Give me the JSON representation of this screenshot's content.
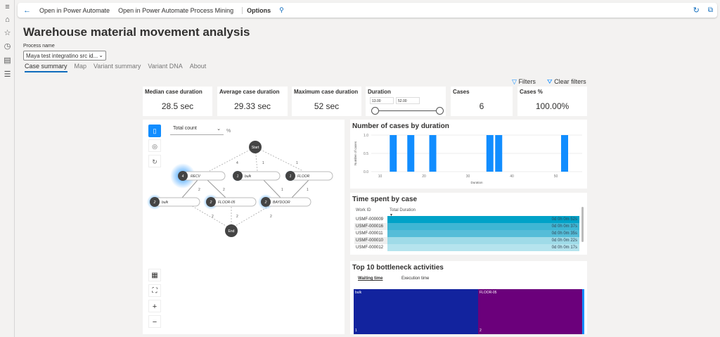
{
  "toolbar": {
    "open_pa": "Open in Power Automate",
    "open_pm": "Open in Power Automate Process Mining",
    "options": "Options"
  },
  "page": {
    "title": "Warehouse material movement analysis",
    "process_label": "Process name",
    "process_value": "Maya test integratino src id..."
  },
  "tabs": [
    "Case summary",
    "Map",
    "Variant summary",
    "Variant DNA",
    "About"
  ],
  "filters": {
    "filters": "Filters",
    "clear": "Clear filters"
  },
  "kpis": [
    {
      "title": "Median case duration",
      "value": "28.5 sec"
    },
    {
      "title": "Average case duration",
      "value": "29.33 sec"
    },
    {
      "title": "Maximum case duration",
      "value": "52 sec"
    }
  ],
  "duration": {
    "title": "Duration",
    "min": "13.00",
    "max": "52.00"
  },
  "cases": {
    "title": "Cases",
    "value": "6"
  },
  "cases_pct": {
    "title": "Cases %",
    "value": "100.00%"
  },
  "map": {
    "metric": "Total count",
    "pct": "%",
    "nodes": {
      "start": "Start",
      "end": "End",
      "recv": "RECV",
      "recv_n": "4",
      "bulk1": "bulk",
      "bulk1_n": "1",
      "floor": "FLOOR",
      "floor_n": "1",
      "bulk2": "bulk",
      "bulk2_n": "2",
      "floor05": "FLOOR-05",
      "floor05_n": "2",
      "baydoor": "BAYDOOR",
      "baydoor_n": "2"
    },
    "edges": [
      "4",
      "1",
      "1",
      "2",
      "2",
      "1",
      "1",
      "2",
      "2",
      "2"
    ]
  },
  "chart_data": {
    "type": "bar",
    "title": "Number of cases by duration",
    "xlabel": "Duration",
    "ylabel": "Number of cases",
    "x": [
      13,
      17,
      22,
      35,
      37,
      52
    ],
    "values": [
      1,
      1,
      1,
      1,
      1,
      1
    ],
    "xlim": [
      8,
      56
    ],
    "ylim": [
      0,
      1
    ],
    "xticks": [
      "10",
      "20",
      "30",
      "40",
      "50"
    ],
    "yticks": [
      "0.0",
      "0.5",
      "1.0"
    ],
    "color": "#118dff"
  },
  "time_spent": {
    "title": "Time spent by case",
    "col1": "Work ID",
    "col2": "Total Duration",
    "rows": [
      {
        "id": "USMF-000009",
        "d": "0d 0h 0m 52s",
        "c": "#00a2c8"
      },
      {
        "id": "USMF-000016",
        "d": "0d 0h 0m 37s",
        "c": "#3fb6d4"
      },
      {
        "id": "USMF-000011",
        "d": "0d 0h 0m 35s",
        "c": "#55bdd8"
      },
      {
        "id": "USMF-000010",
        "d": "0d 0h 0m 22s",
        "c": "#9fdbe8"
      },
      {
        "id": "USMF-000012",
        "d": "0d 0h 0m 17s",
        "c": "#b5e4ee"
      }
    ]
  },
  "bottleneck": {
    "title": "Top 10 bottleneck activities",
    "tab1": "Waiting time",
    "tab2": "Execution time",
    "items": [
      {
        "label": "bulk",
        "rank": "1",
        "color": "#12239e"
      },
      {
        "label": "FLOOR-05",
        "rank": "2",
        "color": "#6b007b"
      }
    ]
  }
}
